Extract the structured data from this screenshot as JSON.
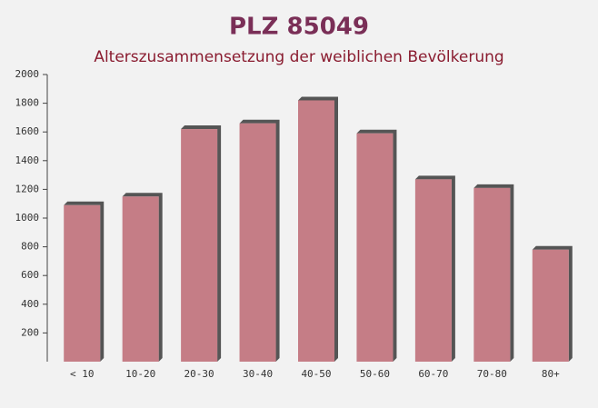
{
  "chart_data": {
    "type": "bar",
    "title": "PLZ 85049",
    "subtitle": "Alterszusammensetzung der weiblichen Bevölkerung",
    "categories": [
      "< 10",
      "10-20",
      "20-30",
      "30-40",
      "40-50",
      "50-60",
      "60-70",
      "70-80",
      "80+"
    ],
    "values": [
      1090,
      1150,
      1620,
      1660,
      1820,
      1590,
      1270,
      1210,
      780
    ],
    "color": "#c0707a",
    "ylim": [
      0,
      2000
    ],
    "yticks": [
      200,
      400,
      600,
      800,
      1000,
      1200,
      1400,
      1600,
      1800,
      2000
    ]
  }
}
